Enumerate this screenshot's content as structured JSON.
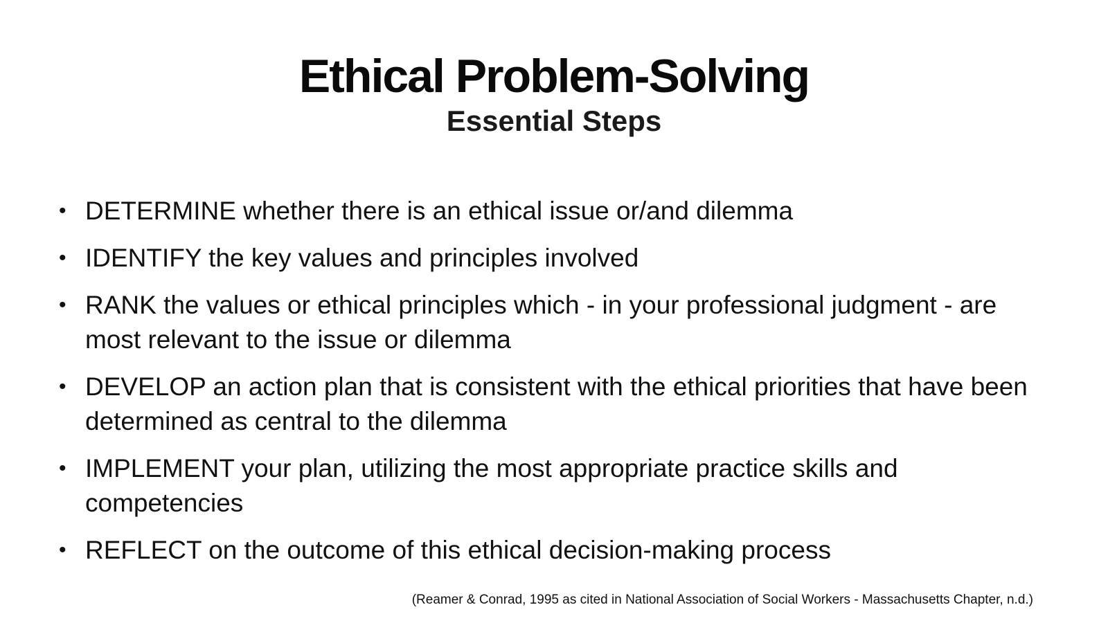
{
  "slide": {
    "title": "Ethical Problem-Solving",
    "subtitle": "Essential Steps",
    "steps": [
      "DETERMINE whether there is an ethical issue or/and dilemma",
      "IDENTIFY the key values and principles involved",
      "RANK the values or ethical principles which - in your professional judgment - are most relevant to the issue or dilemma",
      "DEVELOP an action plan that is consistent with the ethical priorities that have been determined as central to the dilemma",
      "IMPLEMENT your plan, utilizing the most appropriate practice skills and competencies",
      "REFLECT on the outcome of this ethical decision-making process"
    ],
    "bullet_glyph": "•",
    "citation": "(Reamer & Conrad, 1995 as cited in National Association of Social Workers - Massachusetts Chapter, n.d.)"
  }
}
